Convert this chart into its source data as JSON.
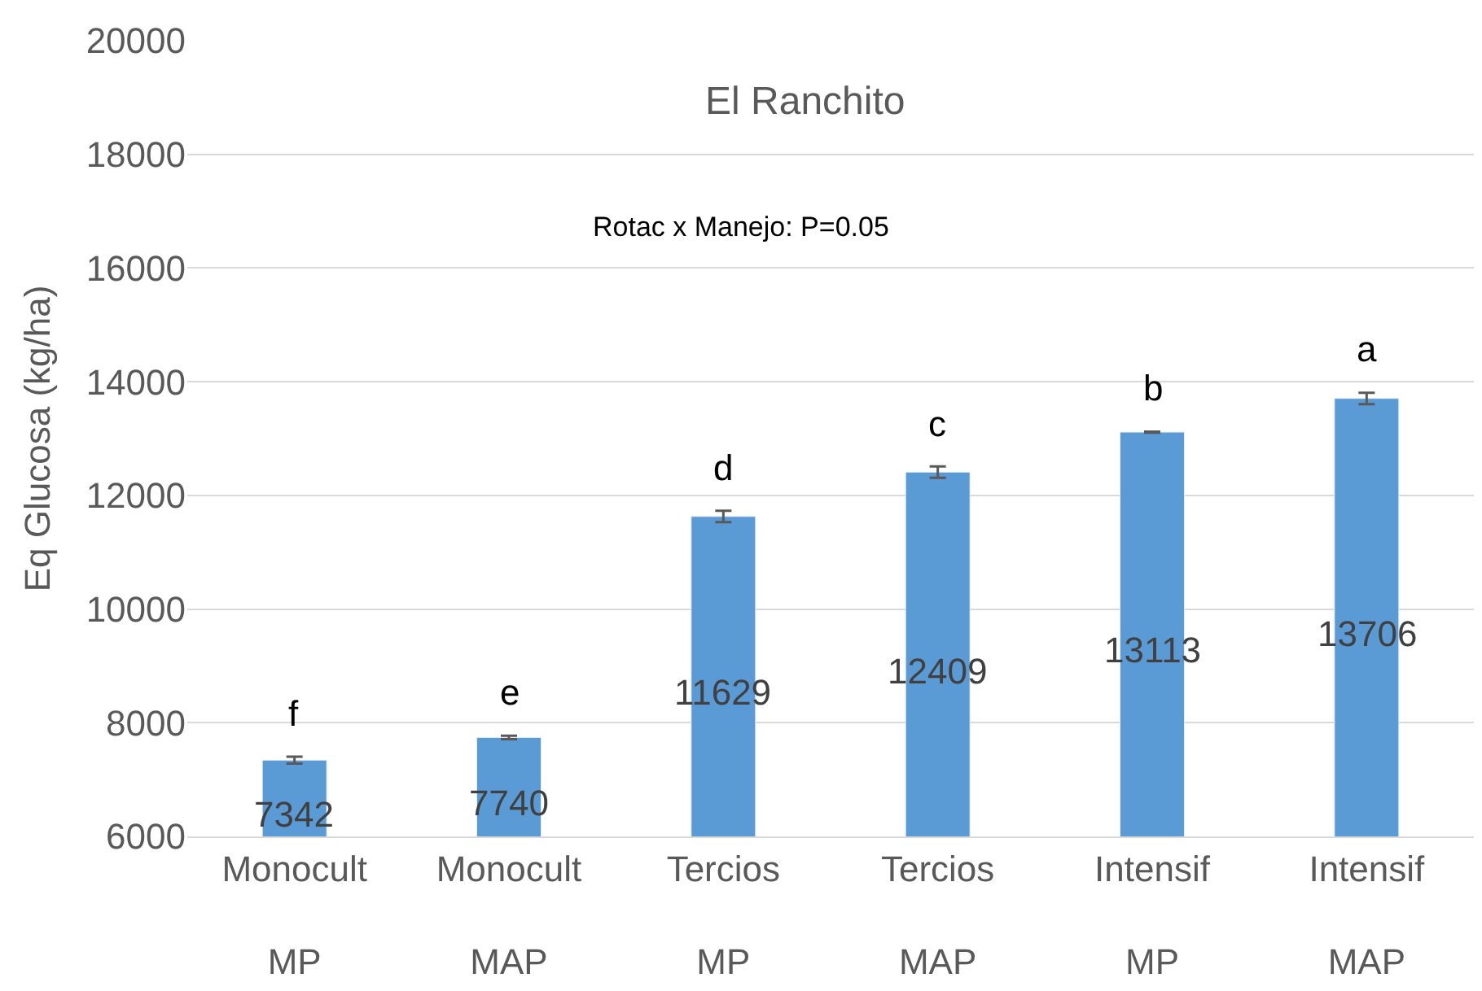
{
  "chart_data": {
    "type": "bar",
    "title": "El Ranchito",
    "ylabel": "Eq Glucosa (kg/ha)",
    "categories": [
      "Monocult\nMP",
      "Monocult\nMAP",
      "Tercios\nMP",
      "Tercios\nMAP",
      "Intensif\nMP",
      "Intensif\nMAP"
    ],
    "values": [
      7342,
      7740,
      11629,
      12409,
      13113,
      13706
    ],
    "errors": [
      60,
      30,
      100,
      100,
      10,
      100
    ],
    "color": "#5b9bd5",
    "data_labels": true,
    "ylim": [
      6000,
      20000
    ],
    "yticks": [
      6000,
      8000,
      10000,
      12000,
      14000,
      16000,
      18000,
      20000
    ],
    "grid": "y",
    "annotations": [
      "Rotac x Manejo: P=0.05",
      "f",
      "e",
      "d",
      "c",
      "b",
      "a"
    ]
  }
}
